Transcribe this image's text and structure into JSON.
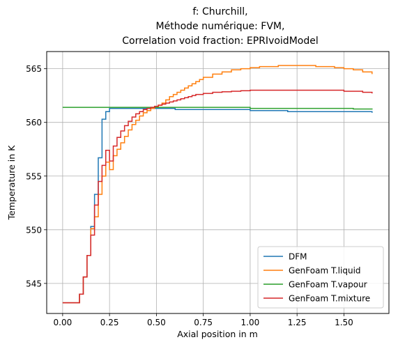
{
  "chart_data": {
    "type": "line",
    "title_lines": [
      "f: Churchill,",
      "Méthode numérique: FVM,",
      "Correlation void fraction: EPRIvoidModel"
    ],
    "xlabel": "Axial position in m",
    "ylabel": "Temperature in K",
    "xlim": [
      -0.085,
      1.74
    ],
    "ylim": [
      542.2,
      566.6
    ],
    "x_ticks": [
      0.0,
      0.25,
      0.5,
      0.75,
      1.0,
      1.25,
      1.5
    ],
    "x_tick_labels": [
      "0.00",
      "0.25",
      "0.50",
      "0.75",
      "1.00",
      "1.25",
      "1.50"
    ],
    "y_ticks": [
      545,
      550,
      555,
      560,
      565
    ],
    "y_tick_labels": [
      "545",
      "550",
      "555",
      "560",
      "565"
    ],
    "grid": true,
    "legend_position": "lower-right",
    "step_style": "post",
    "series": [
      {
        "name": "DFM",
        "color": "#1f77b4",
        "x": [
          0.0,
          0.09,
          0.11,
          0.13,
          0.15,
          0.17,
          0.19,
          0.21,
          0.23,
          0.25,
          0.3,
          0.4,
          0.5,
          0.6,
          0.8,
          1.0,
          1.2,
          1.3,
          1.5,
          1.65
        ],
        "y": [
          543.2,
          544.0,
          545.6,
          547.6,
          550.3,
          553.3,
          556.7,
          560.3,
          561.0,
          561.3,
          561.3,
          561.3,
          561.3,
          561.2,
          561.2,
          561.1,
          561.0,
          561.0,
          561.0,
          560.9
        ]
      },
      {
        "name": "GenFoam T.liquid",
        "color": "#ff7f0e",
        "x": [
          0.0,
          0.09,
          0.11,
          0.13,
          0.15,
          0.17,
          0.19,
          0.21,
          0.23,
          0.25,
          0.27,
          0.29,
          0.31,
          0.33,
          0.35,
          0.37,
          0.39,
          0.41,
          0.43,
          0.45,
          0.47,
          0.49,
          0.51,
          0.53,
          0.55,
          0.57,
          0.59,
          0.61,
          0.63,
          0.65,
          0.67,
          0.69,
          0.71,
          0.73,
          0.75,
          0.8,
          0.85,
          0.9,
          0.95,
          1.0,
          1.05,
          1.1,
          1.15,
          1.2,
          1.25,
          1.3,
          1.35,
          1.4,
          1.45,
          1.5,
          1.55,
          1.6,
          1.65
        ],
        "y": [
          543.2,
          544.0,
          545.6,
          547.6,
          550.1,
          551.2,
          553.3,
          555.0,
          556.3,
          555.6,
          556.9,
          557.5,
          558.1,
          558.7,
          559.3,
          559.8,
          560.2,
          560.6,
          560.9,
          561.1,
          561.3,
          561.4,
          561.6,
          561.8,
          562.1,
          562.4,
          562.6,
          562.8,
          563.0,
          563.2,
          563.4,
          563.6,
          563.8,
          564.0,
          564.2,
          564.5,
          564.7,
          564.9,
          565.0,
          565.1,
          565.2,
          565.2,
          565.3,
          565.3,
          565.3,
          565.3,
          565.2,
          565.2,
          565.1,
          565.0,
          564.9,
          564.7,
          564.5
        ]
      },
      {
        "name": "GenFoam T.vapour",
        "color": "#2ca02c",
        "x": [
          0.0,
          0.5,
          1.0,
          1.4,
          1.55,
          1.65
        ],
        "y": [
          561.4,
          561.4,
          561.3,
          561.3,
          561.25,
          561.2
        ]
      },
      {
        "name": "GenFoam T.mixture",
        "color": "#d62728",
        "x": [
          0.0,
          0.09,
          0.11,
          0.13,
          0.15,
          0.17,
          0.19,
          0.21,
          0.23,
          0.25,
          0.27,
          0.29,
          0.31,
          0.33,
          0.35,
          0.37,
          0.39,
          0.41,
          0.43,
          0.45,
          0.47,
          0.49,
          0.51,
          0.53,
          0.55,
          0.57,
          0.59,
          0.61,
          0.63,
          0.65,
          0.67,
          0.69,
          0.71,
          0.75,
          0.8,
          0.85,
          0.9,
          0.95,
          1.0,
          1.1,
          1.2,
          1.3,
          1.4,
          1.5,
          1.6,
          1.65
        ],
        "y": [
          543.2,
          544.0,
          545.6,
          547.6,
          549.5,
          552.3,
          554.5,
          556.0,
          557.4,
          556.4,
          557.8,
          558.6,
          559.2,
          559.7,
          560.1,
          560.5,
          560.8,
          561.0,
          561.2,
          561.3,
          561.4,
          561.5,
          561.6,
          561.7,
          561.8,
          561.9,
          562.0,
          562.1,
          562.2,
          562.3,
          562.4,
          562.5,
          562.6,
          562.7,
          562.8,
          562.85,
          562.9,
          562.95,
          563.0,
          563.0,
          563.0,
          563.0,
          563.0,
          562.9,
          562.8,
          562.7
        ]
      }
    ]
  }
}
